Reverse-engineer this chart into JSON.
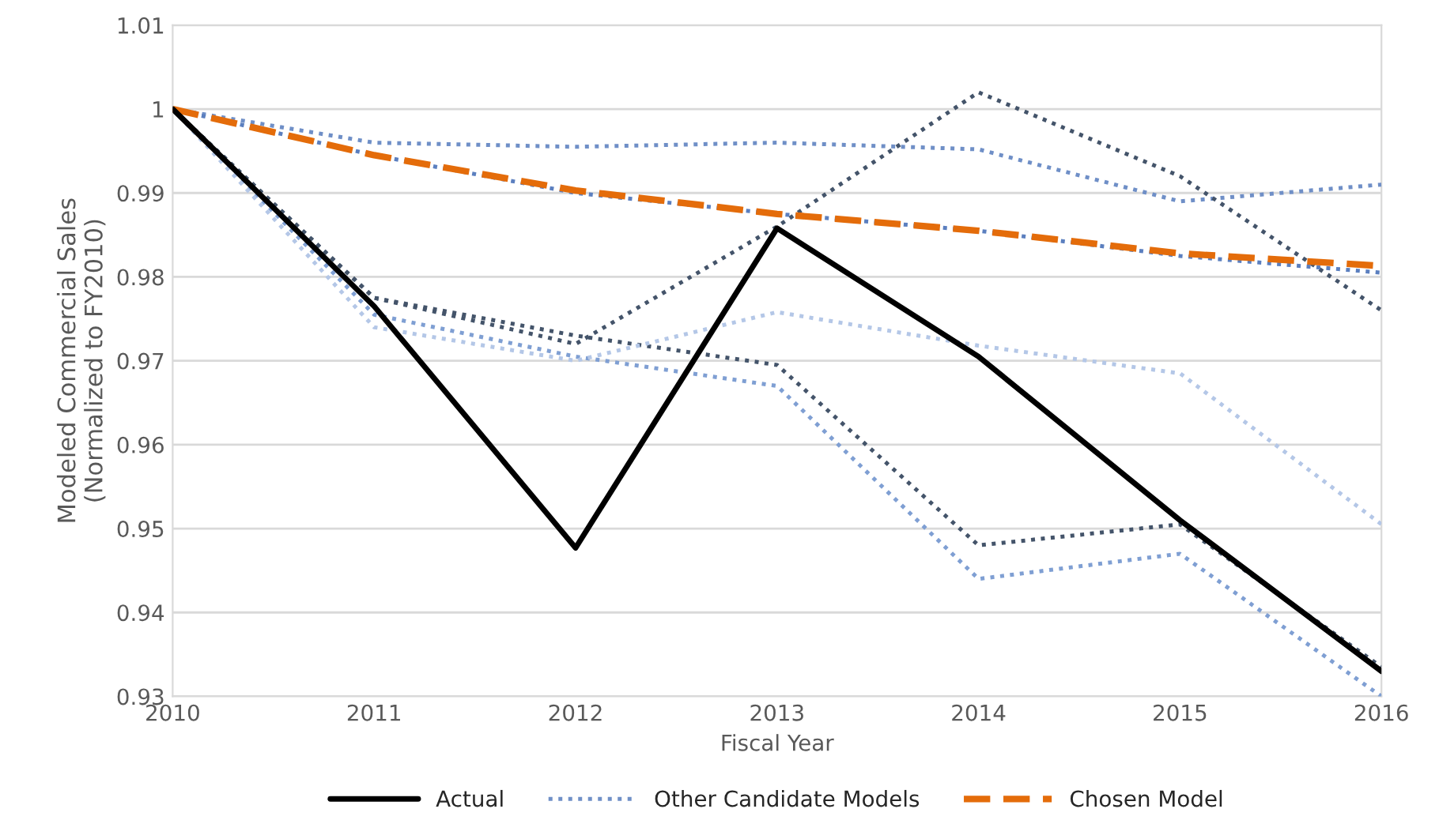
{
  "chart_data": {
    "type": "line",
    "xlabel": "Fiscal Year",
    "ylabel": "Modeled Commercial Sales\n(Normalized to FY2010)",
    "x": [
      2010,
      2011,
      2012,
      2013,
      2014,
      2015,
      2016
    ],
    "xlim": [
      2010,
      2016
    ],
    "xticks": [
      2010,
      2011,
      2012,
      2013,
      2014,
      2015,
      2016
    ],
    "ylim": [
      0.93,
      1.01
    ],
    "yticks": [
      0.93,
      0.94,
      0.95,
      0.96,
      0.97,
      0.98,
      0.99,
      1,
      1.01
    ],
    "grid": "y",
    "legend": "bottom",
    "series": [
      {
        "name": "Actual",
        "color": "#000000",
        "line_style": "solid",
        "values": [
          1,
          0.9765,
          0.9477,
          0.9858,
          0.9705,
          0.951,
          0.933
        ]
      },
      {
        "name": "Other Candidate Models",
        "color": "#6f8fc7",
        "line_style": "dotted",
        "values": [
          1,
          0.996,
          0.9955,
          0.996,
          0.9952,
          0.989,
          0.991
        ]
      },
      {
        "color": "#44546a",
        "line_style": "dotted",
        "values": [
          1,
          0.9775,
          0.972,
          0.986,
          1.002,
          0.992,
          0.976
        ]
      },
      {
        "color": "#5b7fbf",
        "line_style": "dotted",
        "values": [
          1,
          0.9945,
          0.99,
          0.9875,
          0.9855,
          0.9825,
          0.9805
        ]
      },
      {
        "color": "#44546a",
        "line_style": "dotted",
        "values": [
          1,
          0.9775,
          0.973,
          0.9695,
          0.948,
          0.9505,
          0.9335
        ]
      },
      {
        "color": "#7f9fd3",
        "line_style": "dotted",
        "values": [
          1,
          0.9755,
          0.9705,
          0.967,
          0.944,
          0.947,
          0.93
        ]
      },
      {
        "color": "#b4c7e7",
        "line_style": "dotted",
        "values": [
          1,
          0.974,
          0.97,
          0.9758,
          0.9718,
          0.9685,
          0.9505
        ]
      },
      {
        "name": "Chosen Model",
        "color": "#e46c0a",
        "line_style": "dashed",
        "values": [
          1,
          0.9945,
          0.9903,
          0.9875,
          0.9855,
          0.9828,
          0.9813
        ]
      }
    ]
  }
}
